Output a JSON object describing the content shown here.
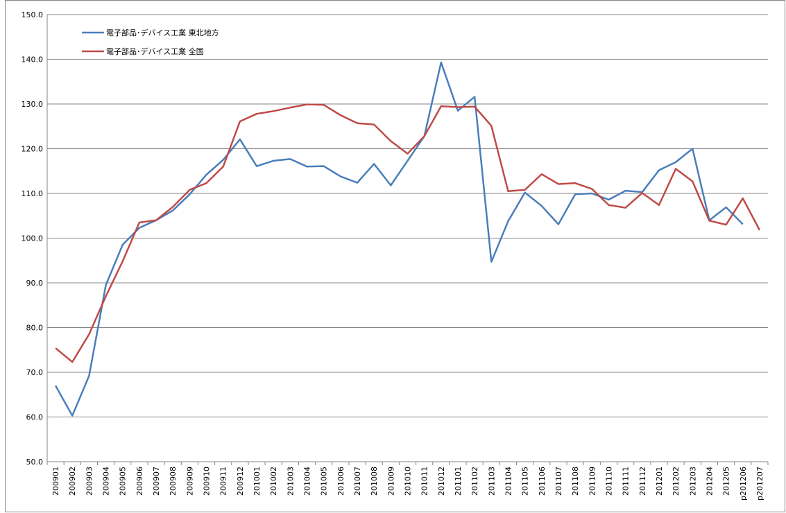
{
  "chart_data": {
    "type": "line",
    "categories": [
      "200901",
      "200902",
      "200903",
      "200904",
      "200905",
      "200906",
      "200907",
      "200908",
      "200909",
      "200910",
      "200911",
      "200912",
      "201001",
      "201002",
      "201003",
      "201004",
      "201005",
      "201006",
      "201007",
      "201008",
      "201009",
      "201010",
      "201011",
      "201012",
      "201101",
      "201102",
      "201103",
      "201104",
      "201105",
      "201106",
      "201107",
      "201108",
      "201109",
      "201110",
      "201111",
      "201112",
      "201201",
      "201202",
      "201203",
      "201204",
      "201205",
      "p201206",
      "p201207"
    ],
    "series": [
      {
        "name": "電子部品･デバイス工業 東北地方",
        "color": "#4a7ebb",
        "values": [
          67.0,
          60.3,
          69.2,
          89.5,
          98.5,
          102.3,
          104.0,
          106.2,
          109.8,
          114.2,
          117.5,
          122.1,
          116.1,
          117.3,
          117.7,
          116.0,
          116.1,
          113.8,
          112.4,
          116.6,
          111.8,
          117.3,
          122.8,
          139.3,
          128.5,
          131.6,
          94.7,
          103.8,
          110.2,
          107.2,
          103.1,
          109.8,
          110.0,
          108.6,
          110.6,
          110.3,
          115.2,
          117.0,
          120.0,
          104.0,
          106.9,
          103.1,
          null
        ]
      },
      {
        "name": "電子部品･デバイス工業 全国",
        "color": "#be4b48",
        "values": [
          75.4,
          72.3,
          78.5,
          87.0,
          94.8,
          103.5,
          104.0,
          107.0,
          110.8,
          112.3,
          116.0,
          126.1,
          127.8,
          128.4,
          129.2,
          129.9,
          129.8,
          127.5,
          125.7,
          125.4,
          121.7,
          118.9,
          122.8,
          129.5,
          129.3,
          129.4,
          125.1,
          110.5,
          110.8,
          114.3,
          112.1,
          112.3,
          111.0,
          107.4,
          106.8,
          110.1,
          107.4,
          115.5,
          112.7,
          103.9,
          103.0,
          108.9,
          101.8
        ]
      }
    ],
    "ylim": [
      50,
      150
    ],
    "yticks": [
      {
        "value": 50,
        "label": "50.0"
      },
      {
        "value": 60,
        "label": "60.0"
      },
      {
        "value": 70,
        "label": "70.0"
      },
      {
        "value": 80,
        "label": "80.0"
      },
      {
        "value": 90,
        "label": "90.0"
      },
      {
        "value": 100,
        "label": "100.0"
      },
      {
        "value": 110,
        "label": "110.0"
      },
      {
        "value": 120,
        "label": "120.0"
      },
      {
        "value": 130,
        "label": "130.0"
      },
      {
        "value": 140,
        "label": "140.0"
      },
      {
        "value": 150,
        "label": "150.0"
      }
    ],
    "grid": true,
    "legend": "top-left"
  }
}
